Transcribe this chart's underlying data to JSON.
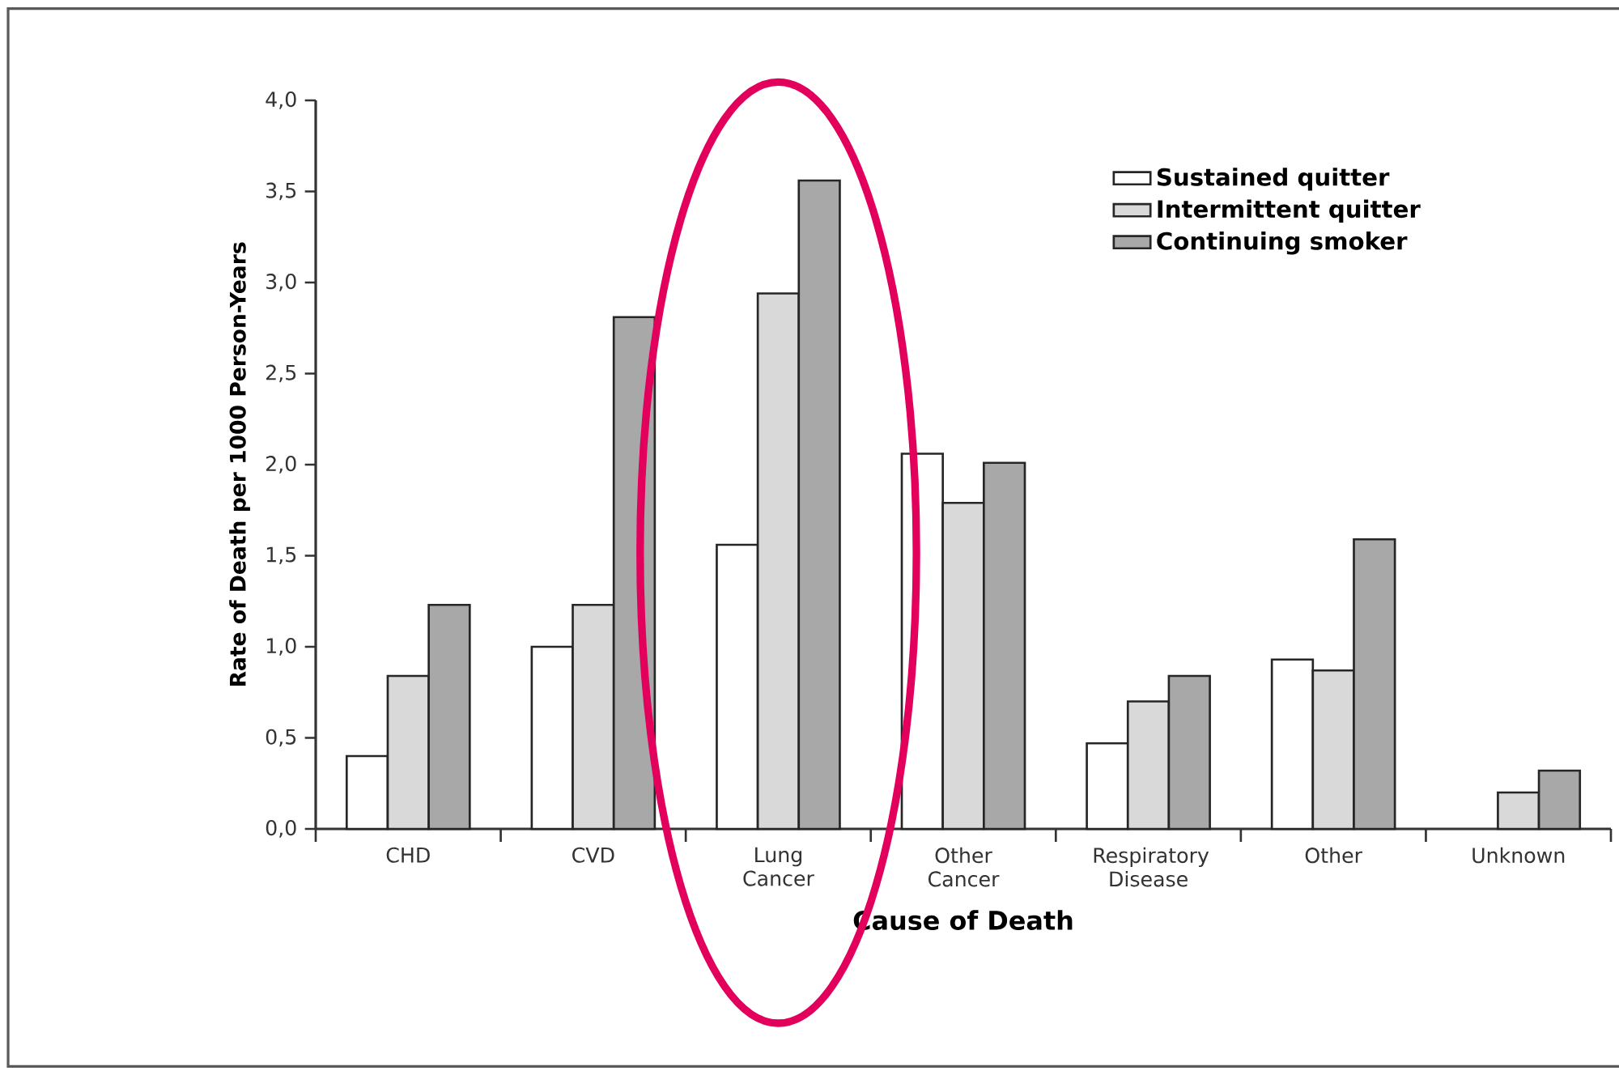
{
  "chart_data": {
    "type": "bar",
    "xlabel": "Cause of Death",
    "ylabel": "Rate of Death per 1000 Person-Years",
    "categories": [
      "CHD",
      "CVD",
      "Lung Cancer",
      "Other Cancer",
      "Respiratory Disease",
      "Other",
      "Unknown"
    ],
    "series": [
      {
        "name": "Sustained quitter",
        "color": "#ffffff",
        "values": [
          0.4,
          1.0,
          1.56,
          2.06,
          0.47,
          0.93,
          null
        ]
      },
      {
        "name": "Intermittent quitter",
        "color": "#d9d9d9",
        "values": [
          0.84,
          1.23,
          2.94,
          1.79,
          0.7,
          0.87,
          0.2
        ]
      },
      {
        "name": "Continuing smoker",
        "color": "#a8a8a8",
        "values": [
          1.23,
          2.81,
          3.56,
          2.01,
          0.84,
          1.59,
          0.32
        ]
      }
    ],
    "ylim": [
      0,
      4
    ],
    "yticks": [
      {
        "value": 0,
        "label": "0,0"
      },
      {
        "value": 0.5,
        "label": "0,5"
      },
      {
        "value": 1,
        "label": "1,0"
      },
      {
        "value": 1.5,
        "label": "1,5"
      },
      {
        "value": 2,
        "label": "2,0"
      },
      {
        "value": 2.5,
        "label": "2,5"
      },
      {
        "value": 3,
        "label": "3,0"
      },
      {
        "value": 3.5,
        "label": "3,5"
      },
      {
        "value": 4,
        "label": "4,0"
      }
    ],
    "legend": "top right"
  }
}
